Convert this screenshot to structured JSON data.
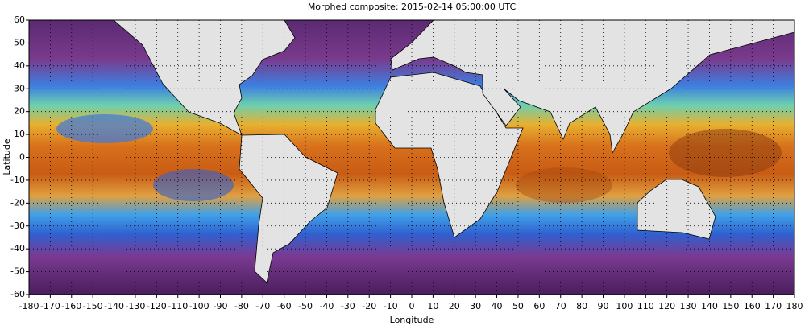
{
  "chart_data": {
    "type": "map",
    "title": "Morphed composite: 2015-02-14 05:00:00 UTC",
    "xlabel": "Longitude",
    "ylabel": "Latitude",
    "xlim": [
      -180,
      180
    ],
    "ylim": [
      -60,
      60
    ],
    "xticks": [
      -180,
      -170,
      -160,
      -150,
      -140,
      -130,
      -120,
      -110,
      -100,
      -90,
      -80,
      -70,
      -60,
      -50,
      -40,
      -30,
      -20,
      -10,
      0,
      10,
      20,
      30,
      40,
      50,
      60,
      70,
      80,
      90,
      100,
      110,
      120,
      130,
      140,
      150,
      160,
      170,
      180
    ],
    "yticks": [
      -60,
      -50,
      -40,
      -30,
      -20,
      -10,
      0,
      10,
      20,
      30,
      40,
      50,
      60
    ],
    "grid": true
  }
}
